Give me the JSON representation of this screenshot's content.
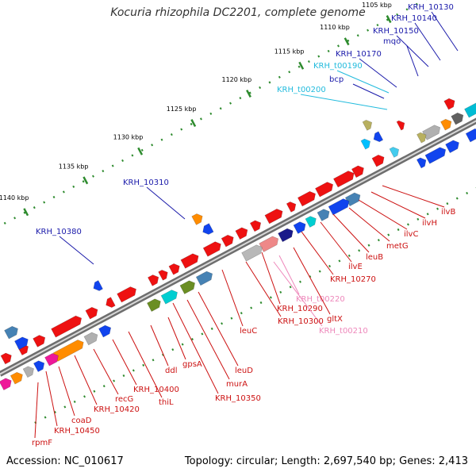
{
  "title": "Kocuria rhizophila DC2201, complete genome",
  "accession": "Accession: NC_010617",
  "topology": "Topology: circular; Length: 2,697,540 bp; Genes: 2,413",
  "colors": {
    "backbone": "#808080",
    "ruler_tick": "#2e8b2e",
    "red_gene": "#ee1111",
    "blue_label": "#1a1aaa",
    "cyan_label": "#22bbdd",
    "red_label": "#cc1111",
    "pink_label": "#ee88bb"
  },
  "ruler": [
    {
      "label": "1105 kbp"
    },
    {
      "label": "1110 kbp"
    },
    {
      "label": "1115 kbp"
    },
    {
      "label": "1120 kbp"
    },
    {
      "label": "1125 kbp"
    },
    {
      "label": "1130 kbp"
    },
    {
      "label": "1135 kbp"
    },
    {
      "label": "1140 kbp"
    }
  ],
  "labels_top": [
    {
      "text": "KRH_10130",
      "color": "blue"
    },
    {
      "text": "KRH_10140",
      "color": "blue"
    },
    {
      "text": "KRH_10150",
      "color": "blue"
    },
    {
      "text": "mqo",
      "color": "blue"
    },
    {
      "text": "KRH_10170",
      "color": "blue"
    },
    {
      "text": "KRH_t00190",
      "color": "cyan"
    },
    {
      "text": "bcp",
      "color": "blue"
    },
    {
      "text": "KRH_t00200",
      "color": "cyan"
    },
    {
      "text": "KRH_10310",
      "color": "blue"
    },
    {
      "text": "KRH_10380",
      "color": "blue"
    }
  ],
  "labels_bottom": [
    {
      "text": "ilvB",
      "color": "red"
    },
    {
      "text": "ilvH",
      "color": "red"
    },
    {
      "text": "ilvC",
      "color": "red"
    },
    {
      "text": "metG",
      "color": "red"
    },
    {
      "text": "leuB",
      "color": "red"
    },
    {
      "text": "ilvE",
      "color": "red"
    },
    {
      "text": "KRH_10270",
      "color": "red"
    },
    {
      "text": "KRH_t00220",
      "color": "pink"
    },
    {
      "text": "KRH_10290",
      "color": "red"
    },
    {
      "text": "gltX",
      "color": "red"
    },
    {
      "text": "KRH_t00210",
      "color": "pink"
    },
    {
      "text": "KRH_10300",
      "color": "red"
    },
    {
      "text": "leuC",
      "color": "red"
    },
    {
      "text": "leuD",
      "color": "red"
    },
    {
      "text": "murA",
      "color": "red"
    },
    {
      "text": "KRH_10350",
      "color": "red"
    },
    {
      "text": "gpsA",
      "color": "red"
    },
    {
      "text": "ddl",
      "color": "red"
    },
    {
      "text": "thiL",
      "color": "red"
    },
    {
      "text": "KRH_10400",
      "color": "red"
    },
    {
      "text": "recG",
      "color": "red"
    },
    {
      "text": "KRH_10420",
      "color": "red"
    },
    {
      "text": "coaD",
      "color": "red"
    },
    {
      "text": "KRH_10450",
      "color": "red"
    },
    {
      "text": "rpmF",
      "color": "red"
    }
  ]
}
